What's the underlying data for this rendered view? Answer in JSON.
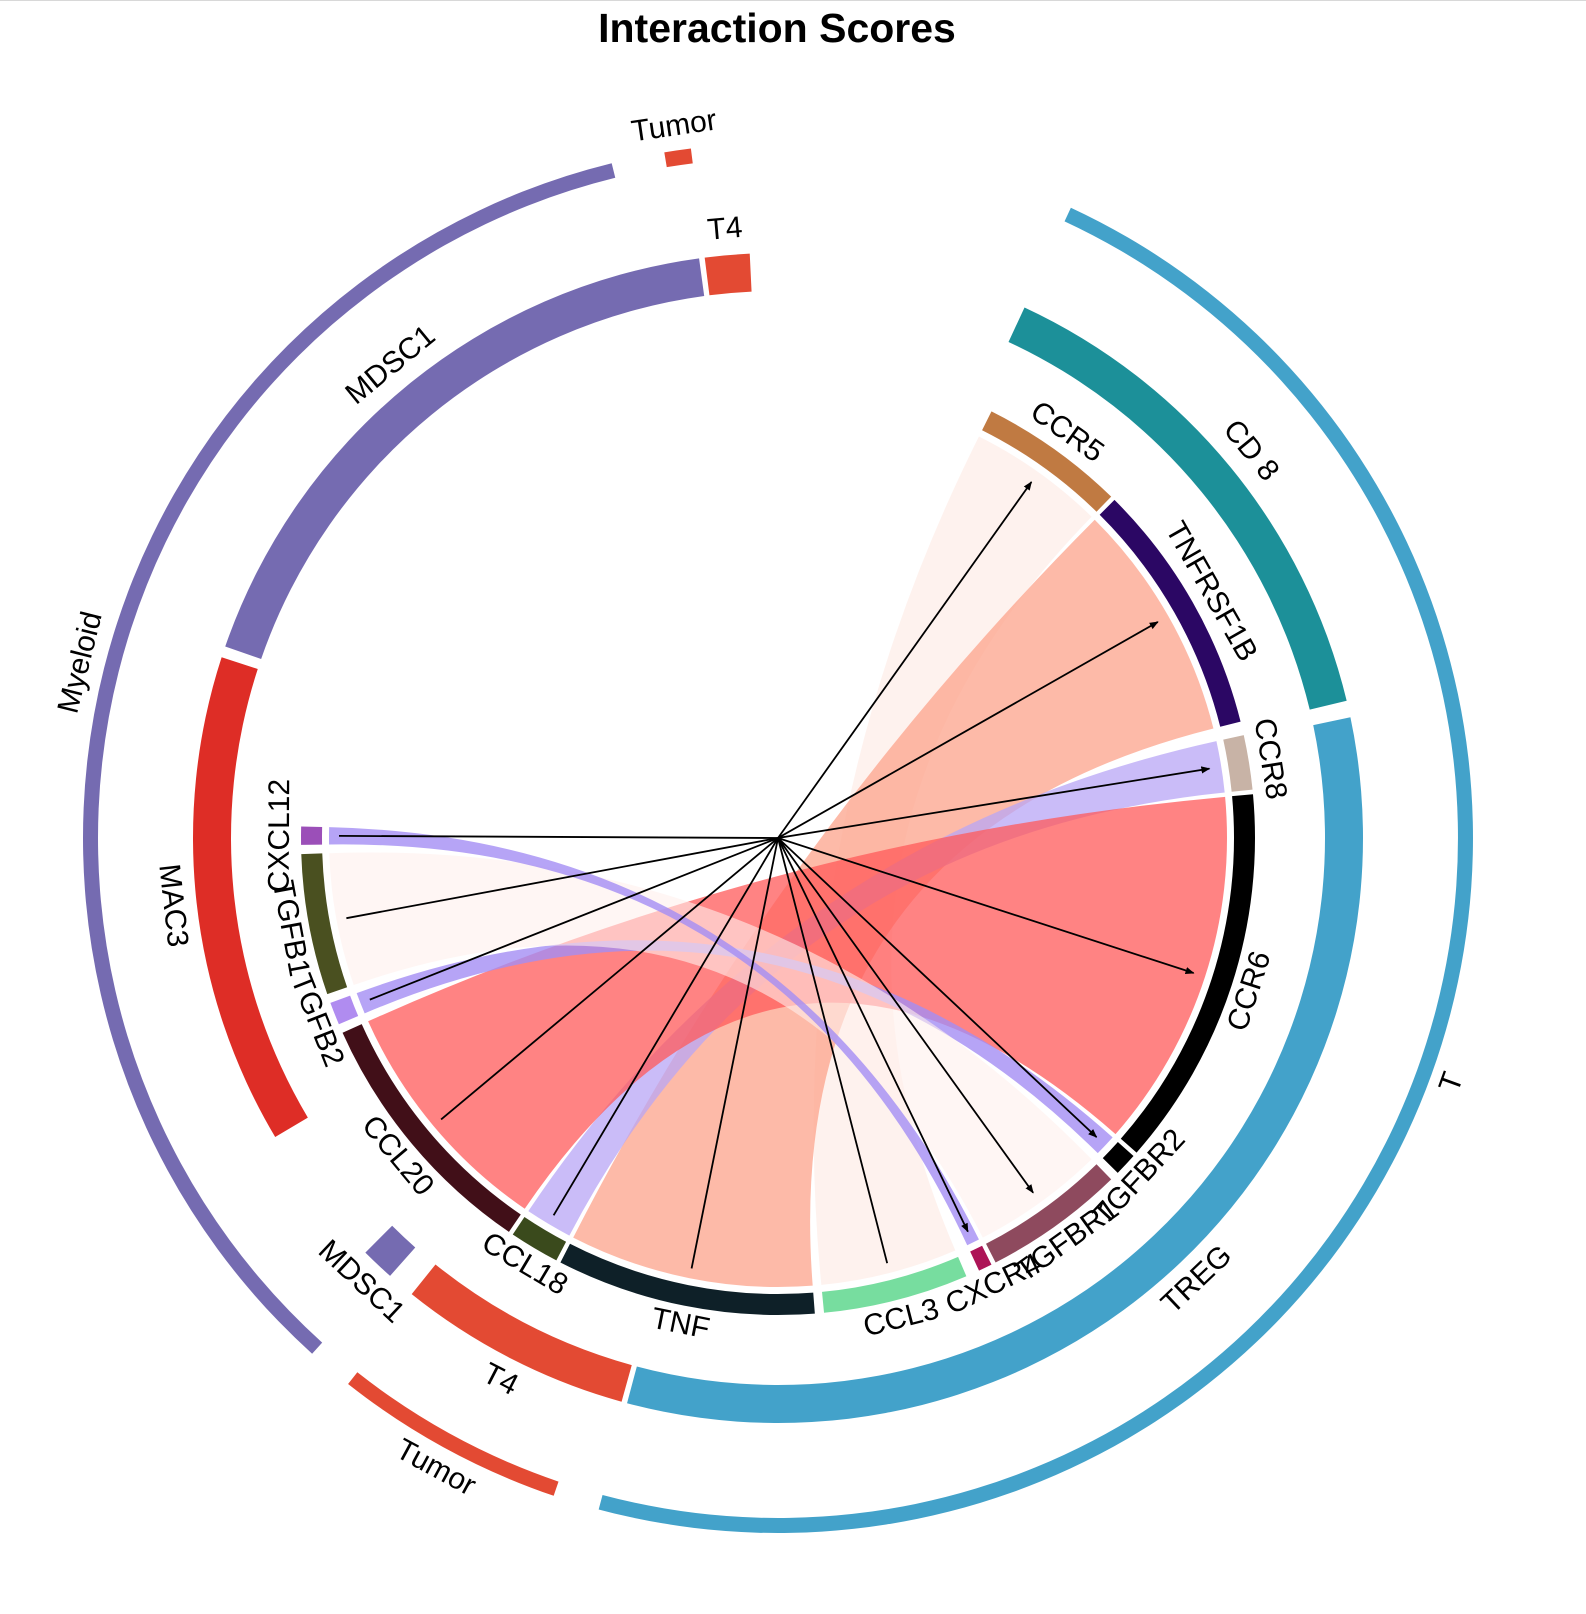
{
  "chart_data": {
    "type": "chord",
    "title": "Interaction Scores",
    "groups": [
      {
        "label": "T",
        "color": "#43a2ca",
        "start": 45,
        "end": 352
      },
      {
        "label": "Tumor",
        "color": "#e34a33",
        "start": 359,
        "end": 394
      },
      {
        "label": "Myeloid",
        "color": "#756bb1",
        "start": 401,
        "end": 625
      },
      {
        "label": "Tumor",
        "color": "#e34a33",
        "start": 633,
        "end": 637
      }
    ],
    "cell_types": [
      {
        "label": "CD 8",
        "color": "#1c9099",
        "start": 45,
        "end": 138
      },
      {
        "label": "TREG",
        "color": "#43a2ca",
        "start": 141,
        "end": 352
      },
      {
        "label": "T4",
        "color": "#e34a33",
        "start": 353,
        "end": 395
      },
      {
        "label": "MDSC1",
        "color": "#756bb1",
        "start": 400,
        "end": 406
      },
      {
        "label": "MAC3",
        "color": "#de2d26",
        "start": 432,
        "end": 520
      },
      {
        "label": "MDSC1",
        "color": "#756bb1",
        "start": 522,
        "end": 636
      },
      {
        "label": "T4",
        "color": "#e34a33",
        "start": 637,
        "end": 645
      }
    ],
    "genes": [
      {
        "label": "CCR5",
        "color": "#c07a42",
        "start": 48,
        "end": 80
      },
      {
        "label": "TNFRSF1B",
        "color": "#2b0764",
        "start": 81,
        "end": 137
      },
      {
        "label": "CCR8",
        "color": "#c8b3a6",
        "start": 140,
        "end": 152
      },
      {
        "label": "CCR6",
        "color": "#000000",
        "start": 153,
        "end": 237
      },
      {
        "label": "TGFBR2",
        "color": "#000000",
        "start": 238,
        "end": 243
      },
      {
        "label": "TGFBR1",
        "color": "#8e4a5e",
        "start": 245,
        "end": 276
      },
      {
        "label": "CXCR4",
        "color": "#ad1457",
        "start": 277,
        "end": 280
      },
      {
        "label": "CCL3",
        "color": "#77dd9f",
        "start": 283,
        "end": 315
      },
      {
        "label": "TNF",
        "color": "#0e2028",
        "start": 317,
        "end": 374
      },
      {
        "label": "CCL18",
        "color": "#3a4a1c",
        "start": 375,
        "end": 386
      },
      {
        "label": "CCL20",
        "color": "#410f18",
        "start": 387,
        "end": 444
      },
      {
        "label": "TGFB2",
        "color": "#b08cf0",
        "start": 446,
        "end": 451
      },
      {
        "label": "TGFB1",
        "color": "#4a5020",
        "start": 453,
        "end": 484
      },
      {
        "label": "CXCL12",
        "color": "#9b4fb8",
        "start": 486,
        "end": 490
      }
    ],
    "links": [
      {
        "source": "CCL3",
        "target": "CCR5",
        "sourceRange": [
          283,
          315
        ],
        "targetRange": [
          48,
          80
        ],
        "color": "#fee8e0",
        "opacity": 0.55
      },
      {
        "source": "TNF",
        "target": "TNFRSF1B",
        "sourceRange": [
          317,
          374
        ],
        "targetRange": [
          81,
          137
        ],
        "color": "#fca38b",
        "opacity": 0.75
      },
      {
        "source": "CCL18",
        "target": "CCR8",
        "sourceRange": [
          375,
          386
        ],
        "targetRange": [
          140,
          152
        ],
        "color": "#b8a5f5",
        "opacity": 0.75
      },
      {
        "source": "CCL20",
        "target": "CCR6",
        "sourceRange": [
          387,
          444
        ],
        "targetRange": [
          153,
          237
        ],
        "color": "#ff5a5a",
        "opacity": 0.75
      },
      {
        "source": "TGFB2",
        "target": "TGFBR2",
        "sourceRange": [
          446,
          451
        ],
        "targetRange": [
          238,
          243
        ],
        "color": "#a48df4",
        "opacity": 0.8
      },
      {
        "source": "TGFB1",
        "target": "TGFBR1",
        "sourceRange": [
          453,
          484
        ],
        "targetRange": [
          245,
          276
        ],
        "color": "#fff0ec",
        "opacity": 0.6
      },
      {
        "source": "CXCL12",
        "target": "CXCR4",
        "sourceRange": [
          486,
          490
        ],
        "targetRange": [
          277,
          280
        ],
        "color": "#a48df4",
        "opacity": 0.8
      }
    ]
  }
}
